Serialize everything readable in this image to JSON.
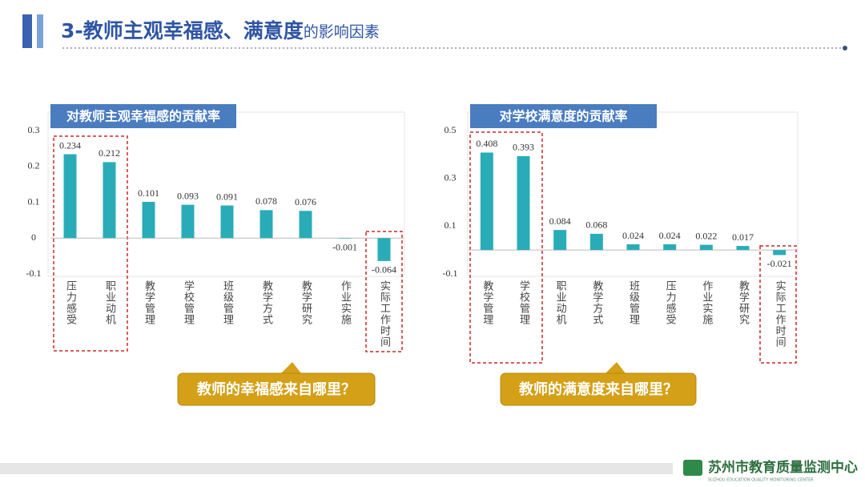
{
  "header": {
    "title_main": "3-教师主观幸福感、满意度",
    "title_rest": "的影响因素"
  },
  "chart_data": [
    {
      "type": "bar",
      "title": "对教师主观幸福感的贡献率",
      "categories": [
        "压力感受",
        "职业动机",
        "教学管理",
        "学校管理",
        "班级管理",
        "教学方式",
        "教学研究",
        "作业实施",
        "实际工作时间"
      ],
      "values": [
        0.234,
        0.212,
        0.101,
        0.093,
        0.091,
        0.078,
        0.076,
        -0.001,
        -0.064
      ],
      "color": "#2aacb8",
      "ylim": [
        -0.1,
        0.3
      ],
      "yticks": [
        -0.1,
        0,
        0.1,
        0.2,
        0.3
      ],
      "callout": "教师的幸福感来自哪里？"
    },
    {
      "type": "bar",
      "title": "对学校满意度的贡献率",
      "categories": [
        "教学管理",
        "学校管理",
        "职业动机",
        "教学方式",
        "班级管理",
        "压力感受",
        "作业实施",
        "教学研究",
        "实际工作时间"
      ],
      "values": [
        0.408,
        0.393,
        0.084,
        0.068,
        0.024,
        0.024,
        0.022,
        0.017,
        -0.021
      ],
      "color": "#2aacb8",
      "ylim": [
        -0.1,
        0.5
      ],
      "yticks": [
        -0.1,
        0.1,
        0.3,
        0.5
      ],
      "callout": "教师的满意度来自哪里？"
    }
  ],
  "footer": {
    "org": "苏州市教育质量监测中心",
    "org_en": "SUZHOU EDUCATION QUALITY MONITORING CENTER"
  }
}
